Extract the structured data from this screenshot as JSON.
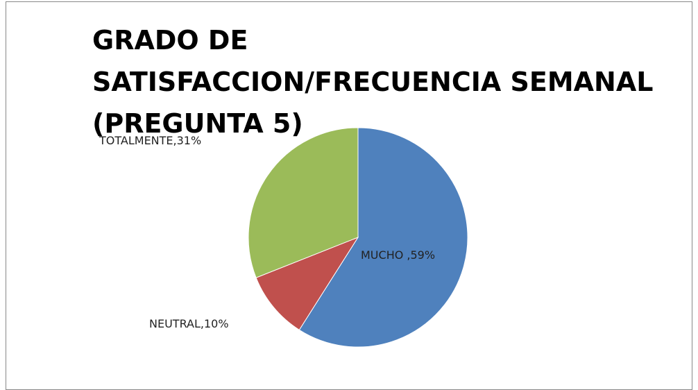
{
  "chart_data": {
    "type": "pie",
    "title": "GRADO DE SATISFACCION/FRECUENCIA SEMANAL (PREGUNTA 5)",
    "categories": [
      "MUCHO ",
      "NEUTRAL",
      "TOTALMENTE"
    ],
    "values": [
      59,
      10,
      31
    ],
    "value_labels": [
      ",59%",
      ",10%",
      ",31%"
    ],
    "colors": [
      "#4f81bd",
      "#c0504d",
      "#9bbb59"
    ]
  }
}
